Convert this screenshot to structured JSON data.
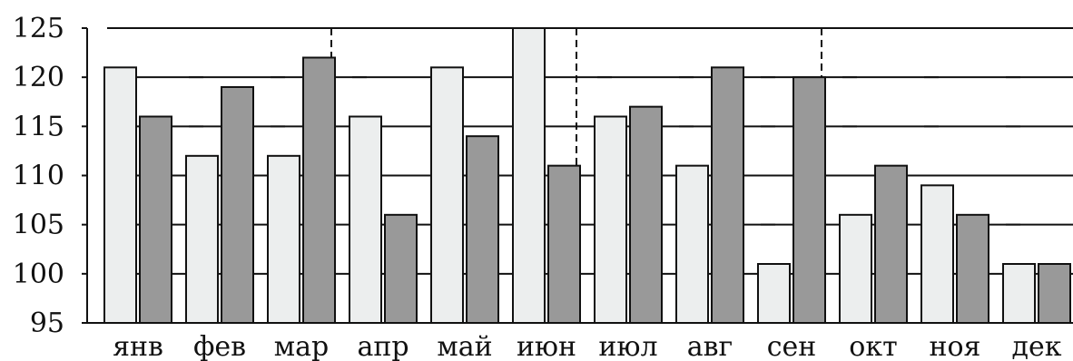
{
  "chart_data": {
    "type": "bar",
    "categories": [
      "янв",
      "фев",
      "мар",
      "апр",
      "май",
      "июн",
      "июл",
      "авг",
      "сен",
      "окт",
      "ноя",
      "дек"
    ],
    "series": [
      {
        "values": [
          121,
          112,
          112,
          116,
          121,
          125,
          116,
          111,
          101,
          106,
          109,
          101
        ]
      },
      {
        "values": [
          116,
          119,
          122,
          106,
          114,
          111,
          117,
          121,
          120,
          111,
          106,
          101
        ]
      }
    ],
    "ylim": [
      95,
      125
    ],
    "yticks": [
      125,
      120,
      115,
      110,
      105,
      100,
      95
    ],
    "grid": true,
    "vertical_dividers_after": [
      "мар",
      "июн",
      "сен"
    ],
    "colors": {
      "series_light": "#eceeee",
      "series_dark": "#999999",
      "outline": "#111111",
      "grid": "#111111"
    }
  }
}
